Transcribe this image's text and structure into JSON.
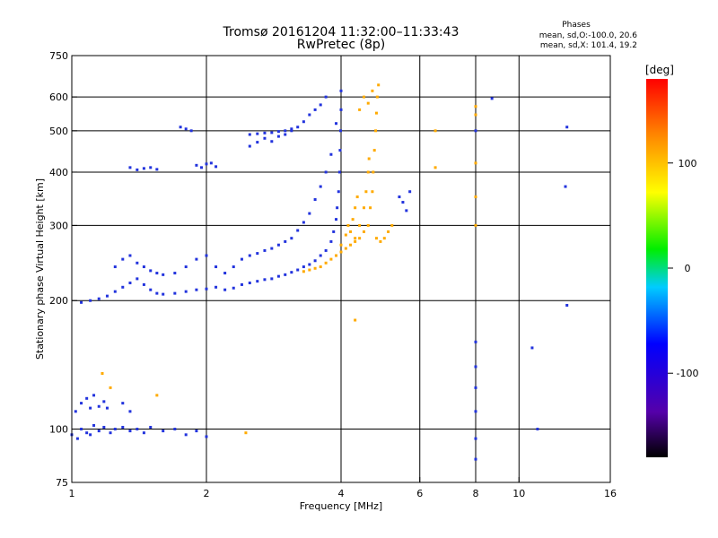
{
  "chart_data": {
    "type": "scatter",
    "title": "Tromsø 20161204 11:32:00–11:33:43",
    "subtitle": "RwPretec (8p)",
    "xlabel": "Frequency [MHz]",
    "ylabel": "Stationary phase Virtual Height [km]",
    "x_scale": "log",
    "y_scale": "log",
    "xlim": [
      1,
      16
    ],
    "ylim": [
      75,
      750
    ],
    "x_ticks": [
      1,
      2,
      4,
      6,
      8,
      10,
      16
    ],
    "y_ticks": [
      75,
      100,
      200,
      300,
      400,
      500,
      600,
      750
    ],
    "x_gridlines": [
      2,
      4,
      6,
      8,
      10
    ],
    "y_gridlines": [
      100,
      200,
      300,
      400,
      500,
      600
    ],
    "grid": true,
    "legend": {
      "title": "Phases",
      "lines": [
        "mean, sd,O:-100.0, 20.6",
        "mean, sd,X: 101.4, 19.2"
      ],
      "position": "top-right"
    },
    "colorbar": {
      "label": "[deg]",
      "range": [
        -180,
        180
      ],
      "ticks": [
        -100,
        0,
        100
      ],
      "colormap": "rainbow"
    },
    "series": [
      {
        "name": "O",
        "color": "#2233dd",
        "points": [
          [
            1.0,
            97
          ],
          [
            1.03,
            95
          ],
          [
            1.05,
            100
          ],
          [
            1.08,
            98
          ],
          [
            1.1,
            97
          ],
          [
            1.12,
            102
          ],
          [
            1.15,
            99
          ],
          [
            1.18,
            101
          ],
          [
            1.22,
            98
          ],
          [
            1.25,
            100
          ],
          [
            1.3,
            101
          ],
          [
            1.35,
            99
          ],
          [
            1.4,
            100
          ],
          [
            1.45,
            98
          ],
          [
            1.5,
            101
          ],
          [
            1.6,
            99
          ],
          [
            1.7,
            100
          ],
          [
            1.8,
            97
          ],
          [
            1.9,
            99
          ],
          [
            2.0,
            96
          ],
          [
            1.02,
            110
          ],
          [
            1.05,
            115
          ],
          [
            1.08,
            118
          ],
          [
            1.1,
            112
          ],
          [
            1.12,
            120
          ],
          [
            1.15,
            113
          ],
          [
            1.18,
            116
          ],
          [
            1.2,
            112
          ],
          [
            1.3,
            115
          ],
          [
            1.35,
            110
          ],
          [
            1.05,
            198
          ],
          [
            1.1,
            200
          ],
          [
            1.15,
            202
          ],
          [
            1.2,
            205
          ],
          [
            1.25,
            210
          ],
          [
            1.3,
            215
          ],
          [
            1.35,
            220
          ],
          [
            1.4,
            225
          ],
          [
            1.45,
            218
          ],
          [
            1.5,
            212
          ],
          [
            1.55,
            208
          ],
          [
            1.6,
            207
          ],
          [
            1.7,
            208
          ],
          [
            1.8,
            210
          ],
          [
            1.9,
            212
          ],
          [
            2.0,
            213
          ],
          [
            2.1,
            215
          ],
          [
            2.2,
            212
          ],
          [
            2.3,
            214
          ],
          [
            2.4,
            218
          ],
          [
            2.5,
            220
          ],
          [
            2.6,
            222
          ],
          [
            2.7,
            224
          ],
          [
            2.8,
            225
          ],
          [
            2.9,
            228
          ],
          [
            3.0,
            230
          ],
          [
            3.1,
            233
          ],
          [
            3.2,
            236
          ],
          [
            3.3,
            240
          ],
          [
            3.4,
            243
          ],
          [
            3.5,
            248
          ],
          [
            3.6,
            255
          ],
          [
            3.7,
            262
          ],
          [
            3.8,
            275
          ],
          [
            3.85,
            290
          ],
          [
            3.9,
            310
          ],
          [
            3.92,
            330
          ],
          [
            3.95,
            360
          ],
          [
            3.97,
            400
          ],
          [
            3.98,
            450
          ],
          [
            3.99,
            500
          ],
          [
            4.0,
            560
          ],
          [
            4.0,
            620
          ],
          [
            1.25,
            240
          ],
          [
            1.3,
            250
          ],
          [
            1.35,
            255
          ],
          [
            1.4,
            245
          ],
          [
            1.45,
            240
          ],
          [
            1.5,
            235
          ],
          [
            1.55,
            232
          ],
          [
            1.6,
            230
          ],
          [
            1.7,
            232
          ],
          [
            1.8,
            240
          ],
          [
            1.9,
            250
          ],
          [
            2.0,
            255
          ],
          [
            2.1,
            240
          ],
          [
            2.2,
            232
          ],
          [
            2.3,
            240
          ],
          [
            2.4,
            250
          ],
          [
            2.5,
            255
          ],
          [
            2.6,
            258
          ],
          [
            2.7,
            262
          ],
          [
            2.8,
            265
          ],
          [
            2.9,
            270
          ],
          [
            3.0,
            275
          ],
          [
            3.1,
            280
          ],
          [
            3.2,
            292
          ],
          [
            3.3,
            305
          ],
          [
            3.4,
            320
          ],
          [
            3.5,
            345
          ],
          [
            3.6,
            370
          ],
          [
            3.7,
            400
          ],
          [
            3.8,
            440
          ],
          [
            3.9,
            520
          ],
          [
            1.35,
            410
          ],
          [
            1.4,
            405
          ],
          [
            1.45,
            408
          ],
          [
            1.5,
            410
          ],
          [
            1.55,
            406
          ],
          [
            1.9,
            415
          ],
          [
            1.95,
            410
          ],
          [
            2.0,
            418
          ],
          [
            2.05,
            420
          ],
          [
            2.1,
            412
          ],
          [
            2.5,
            460
          ],
          [
            2.6,
            470
          ],
          [
            2.7,
            480
          ],
          [
            2.8,
            472
          ],
          [
            2.9,
            485
          ],
          [
            3.0,
            490
          ],
          [
            3.1,
            500
          ],
          [
            3.2,
            510
          ],
          [
            3.3,
            525
          ],
          [
            3.4,
            545
          ],
          [
            3.5,
            560
          ],
          [
            3.6,
            575
          ],
          [
            3.7,
            600
          ],
          [
            2.5,
            490
          ],
          [
            2.6,
            492
          ],
          [
            2.7,
            494
          ],
          [
            2.8,
            495
          ],
          [
            2.9,
            498
          ],
          [
            3.0,
            500
          ],
          [
            3.1,
            505
          ],
          [
            1.8,
            505
          ],
          [
            1.85,
            500
          ],
          [
            1.75,
            510
          ],
          [
            5.4,
            350
          ],
          [
            5.5,
            340
          ],
          [
            5.6,
            325
          ],
          [
            5.7,
            360
          ],
          [
            8.0,
            85
          ],
          [
            8.0,
            95
          ],
          [
            8.0,
            110
          ],
          [
            8.0,
            125
          ],
          [
            8.0,
            140
          ],
          [
            8.0,
            160
          ],
          [
            8.0,
            500
          ],
          [
            8.7,
            595
          ],
          [
            12.8,
            510
          ],
          [
            12.7,
            370
          ],
          [
            12.8,
            195
          ],
          [
            11.0,
            100
          ],
          [
            10.7,
            155
          ]
        ]
      },
      {
        "name": "X",
        "color": "#ffaa00",
        "points": [
          [
            3.6,
            240
          ],
          [
            3.7,
            245
          ],
          [
            3.8,
            250
          ],
          [
            3.9,
            255
          ],
          [
            4.0,
            260
          ],
          [
            4.1,
            265
          ],
          [
            4.2,
            270
          ],
          [
            4.3,
            275
          ],
          [
            4.4,
            280
          ],
          [
            4.5,
            290
          ],
          [
            4.6,
            300
          ],
          [
            4.65,
            330
          ],
          [
            4.7,
            360
          ],
          [
            4.72,
            400
          ],
          [
            4.75,
            450
          ],
          [
            4.78,
            500
          ],
          [
            4.8,
            550
          ],
          [
            4.82,
            600
          ],
          [
            4.85,
            640
          ],
          [
            4.3,
            280
          ],
          [
            4.4,
            300
          ],
          [
            4.5,
            330
          ],
          [
            4.55,
            360
          ],
          [
            4.6,
            400
          ],
          [
            4.62,
            430
          ],
          [
            4.2,
            290
          ],
          [
            4.25,
            310
          ],
          [
            4.3,
            330
          ],
          [
            4.35,
            350
          ],
          [
            4.8,
            280
          ],
          [
            4.9,
            275
          ],
          [
            5.0,
            280
          ],
          [
            5.1,
            290
          ],
          [
            5.2,
            300
          ],
          [
            4.6,
            580
          ],
          [
            4.7,
            620
          ],
          [
            4.4,
            560
          ],
          [
            4.5,
            600
          ],
          [
            3.5,
            238
          ],
          [
            3.4,
            236
          ],
          [
            3.3,
            234
          ],
          [
            4.0,
            270
          ],
          [
            4.1,
            285
          ],
          [
            4.15,
            300
          ],
          [
            8.0,
            300
          ],
          [
            8.0,
            350
          ],
          [
            8.0,
            420
          ],
          [
            8.0,
            570
          ],
          [
            8.0,
            545
          ],
          [
            2.45,
            98
          ],
          [
            1.17,
            135
          ],
          [
            1.22,
            125
          ],
          [
            6.5,
            500
          ],
          [
            6.5,
            410
          ],
          [
            4.3,
            180
          ],
          [
            1.55,
            120
          ]
        ]
      }
    ]
  }
}
